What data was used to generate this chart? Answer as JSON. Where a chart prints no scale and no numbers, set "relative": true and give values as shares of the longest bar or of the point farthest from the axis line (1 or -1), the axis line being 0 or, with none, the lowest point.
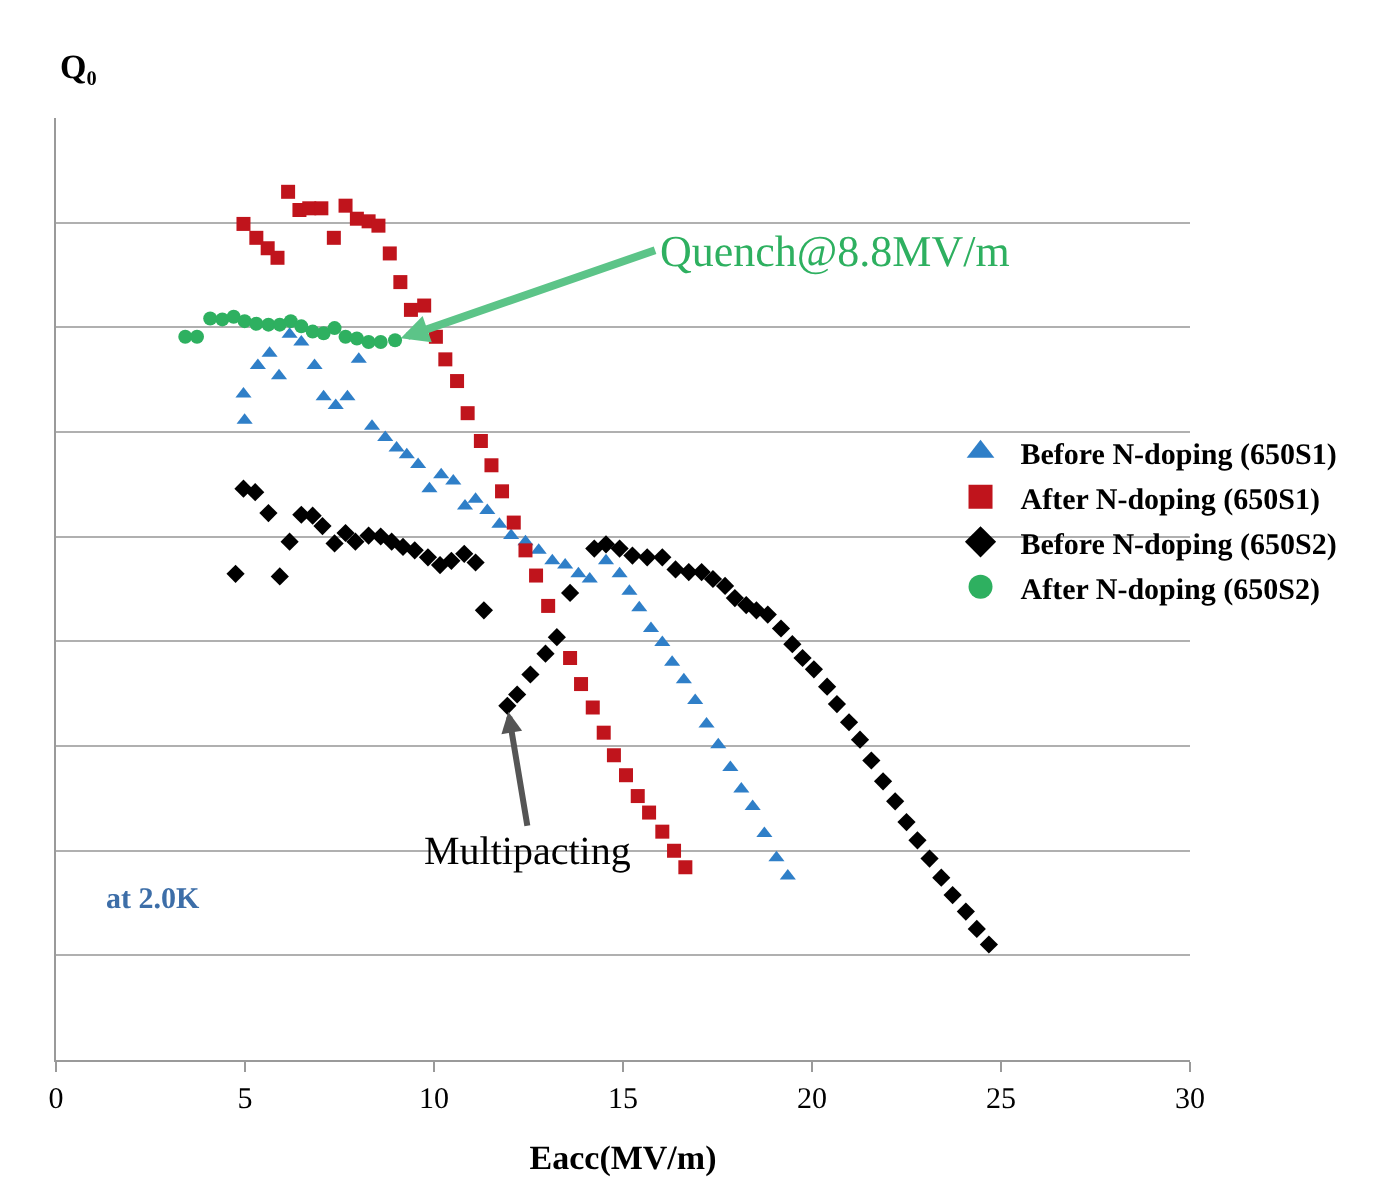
{
  "chart_data": {
    "type": "scatter",
    "relative": true,
    "ylabel": "Q₀",
    "xlabel": "Eacc(MV/m)",
    "xlim": [
      0,
      30
    ],
    "xticks": [
      0,
      5,
      10,
      15,
      20,
      25,
      30
    ],
    "grid": "y",
    "legend": "right",
    "series": [
      {
        "name": "Before N-doping (650S1)",
        "color": "#2f7fc8",
        "marker": "triangle",
        "x": [
          4.96,
          4.99,
          5.34,
          5.65,
          5.9,
          6.18,
          6.49,
          6.84,
          7.08,
          7.4,
          7.71,
          8.01,
          8.36,
          8.71,
          9.01,
          9.28,
          9.58,
          9.88,
          10.19,
          10.51,
          10.82,
          11.1,
          11.41,
          11.73,
          12.04,
          12.42,
          12.77,
          13.13,
          13.47,
          13.82,
          14.12,
          14.55,
          14.91,
          15.17,
          15.43,
          15.74,
          16.04,
          16.3,
          16.61,
          16.91,
          17.21,
          17.52,
          17.84,
          18.13,
          18.43,
          18.74,
          19.06,
          19.36
        ],
        "values": [
          0.767,
          0.737,
          0.8,
          0.814,
          0.788,
          0.836,
          0.827,
          0.8,
          0.764,
          0.754,
          0.764,
          0.807,
          0.73,
          0.717,
          0.705,
          0.697,
          0.686,
          0.658,
          0.674,
          0.667,
          0.638,
          0.646,
          0.633,
          0.617,
          0.604,
          0.597,
          0.587,
          0.575,
          0.57,
          0.56,
          0.554,
          0.575,
          0.56,
          0.54,
          0.521,
          0.497,
          0.481,
          0.458,
          0.438,
          0.414,
          0.387,
          0.363,
          0.337,
          0.312,
          0.292,
          0.261,
          0.233,
          0.212
        ]
      },
      {
        "name": "After N-doping (650S1)",
        "color": "#c0141c",
        "marker": "square",
        "x": [
          4.96,
          5.3,
          5.6,
          5.86,
          6.14,
          6.44,
          6.7,
          7.02,
          7.35,
          7.66,
          7.96,
          8.27,
          8.53,
          8.83,
          9.11,
          9.39,
          9.74,
          10.05,
          10.3,
          10.61,
          10.89,
          11.24,
          11.52,
          11.8,
          12.11,
          12.42,
          12.7,
          13.02,
          13.3,
          13.6,
          13.89,
          14.2,
          14.49,
          14.76,
          15.08,
          15.39,
          15.69,
          16.04,
          16.35,
          16.65
        ],
        "values": [
          0.963,
          0.947,
          0.935,
          0.924,
          1.0,
          0.979,
          0.981,
          0.981,
          0.947,
          0.984,
          0.969,
          0.966,
          0.961,
          0.929,
          0.896,
          0.864,
          0.869,
          0.833,
          0.807,
          0.782,
          0.745,
          0.713,
          0.685,
          0.655,
          0.619,
          0.587,
          0.558,
          0.523,
          null,
          0.463,
          0.433,
          0.406,
          0.377,
          0.351,
          0.328,
          0.304,
          0.285,
          0.263,
          0.241,
          0.222
        ]
      },
      {
        "name": "Before N-doping (650S2)",
        "color": "#000000",
        "marker": "diamond",
        "x": [
          4.75,
          4.96,
          5.27,
          5.62,
          5.92,
          6.18,
          6.49,
          6.79,
          7.05,
          7.37,
          7.66,
          7.92,
          8.27,
          8.59,
          8.88,
          9.18,
          9.49,
          9.84,
          10.16,
          10.46,
          10.8,
          11.1,
          11.32,
          11.94,
          12.2,
          12.55,
          12.95,
          13.25,
          13.6,
          14.24,
          14.55,
          14.91,
          15.25,
          15.64,
          16.04,
          16.39,
          16.74,
          17.08,
          17.38,
          17.7,
          17.96,
          18.26,
          18.53,
          18.83,
          19.18,
          19.48,
          19.75,
          20.05,
          20.4,
          20.66,
          20.98,
          21.27,
          21.57,
          21.88,
          22.2,
          22.5,
          22.79,
          23.11,
          23.42,
          23.72,
          24.07,
          24.36,
          24.68
        ],
        "values": [
          0.56,
          0.658,
          0.654,
          0.63,
          0.557,
          0.597,
          0.628,
          0.627,
          0.615,
          0.595,
          0.607,
          0.597,
          0.604,
          0.603,
          0.597,
          0.591,
          0.587,
          0.579,
          0.57,
          0.575,
          0.583,
          0.573,
          0.518,
          0.408,
          0.421,
          0.444,
          0.468,
          0.487,
          0.538,
          0.589,
          0.594,
          0.589,
          0.581,
          0.579,
          0.579,
          0.565,
          0.562,
          0.562,
          0.554,
          0.546,
          0.532,
          0.524,
          0.518,
          0.513,
          0.497,
          0.479,
          0.463,
          0.45,
          0.43,
          0.41,
          0.389,
          0.369,
          0.345,
          0.321,
          0.298,
          0.274,
          0.253,
          0.232,
          0.21,
          0.19,
          0.171,
          0.151,
          0.133
        ]
      },
      {
        "name": "After N-doping (650S2)",
        "color": "#2eb060",
        "marker": "circle",
        "x": [
          3.42,
          3.73,
          4.08,
          4.4,
          4.7,
          4.99,
          5.3,
          5.62,
          5.92,
          6.21,
          6.49,
          6.79,
          7.08,
          7.37,
          7.66,
          7.96,
          8.27,
          8.59,
          8.88,
          8.97
        ],
        "values": [
          0.833,
          0.833,
          0.854,
          0.853,
          0.856,
          0.851,
          0.848,
          0.847,
          0.847,
          0.851,
          0.845,
          0.839,
          0.837,
          0.843,
          0.833,
          0.831,
          0.827,
          0.827,
          null,
          0.829
        ]
      }
    ],
    "annotations": [
      {
        "text": "Quench@8.8MV/m",
        "x": 8.97,
        "y": 0.829
      },
      {
        "text": "Multipacting",
        "x": 11.94,
        "y": 0.408
      },
      "at 2.0K"
    ]
  }
}
